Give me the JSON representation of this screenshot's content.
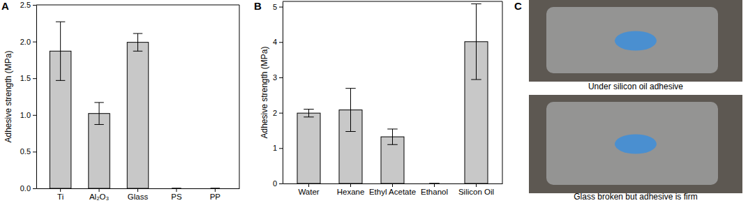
{
  "chart_data": [
    {
      "type": "bar",
      "title": "A",
      "y_label": "Adhesive strength (MPa)",
      "categories": [
        "Ti",
        "Al₂O₃",
        "Glass",
        "PS",
        "PP"
      ],
      "values": [
        1.87,
        1.02,
        1.99,
        0,
        0
      ],
      "errors": [
        0.4,
        0.15,
        0.12,
        0,
        0
      ],
      "color": "#c8c8c8",
      "ylim": [
        0,
        2.5
      ],
      "yticks": [
        {
          "value": 0,
          "label": "0.0"
        },
        {
          "value": 0.5,
          "label": "0.5"
        },
        {
          "value": 1,
          "label": "1.0"
        },
        {
          "value": 1.5,
          "label": "1.5"
        },
        {
          "value": 2,
          "label": "2.0"
        },
        {
          "value": 2.5,
          "label": "2.5"
        }
      ],
      "grid": false
    },
    {
      "type": "bar",
      "title": "B",
      "y_label": "Adhesive strength (MPa)",
      "categories": [
        "Water",
        "Hexane",
        "Ethyl Acetate",
        "Ethanol",
        "Silicon Oil"
      ],
      "values": [
        1.99,
        2.08,
        1.32,
        0,
        4.01
      ],
      "errors": [
        0.11,
        0.61,
        0.22,
        0,
        1.07
      ],
      "color": "#c8c8c8",
      "ylim": [
        0,
        5.15
      ],
      "yticks": [
        0,
        1,
        2,
        3,
        4,
        5
      ],
      "grid": false
    }
  ],
  "figure_panel": {
    "label": "C",
    "captions": [
      "Under silicon oil adhesive",
      "Glass broken but adhesive is firm"
    ]
  }
}
